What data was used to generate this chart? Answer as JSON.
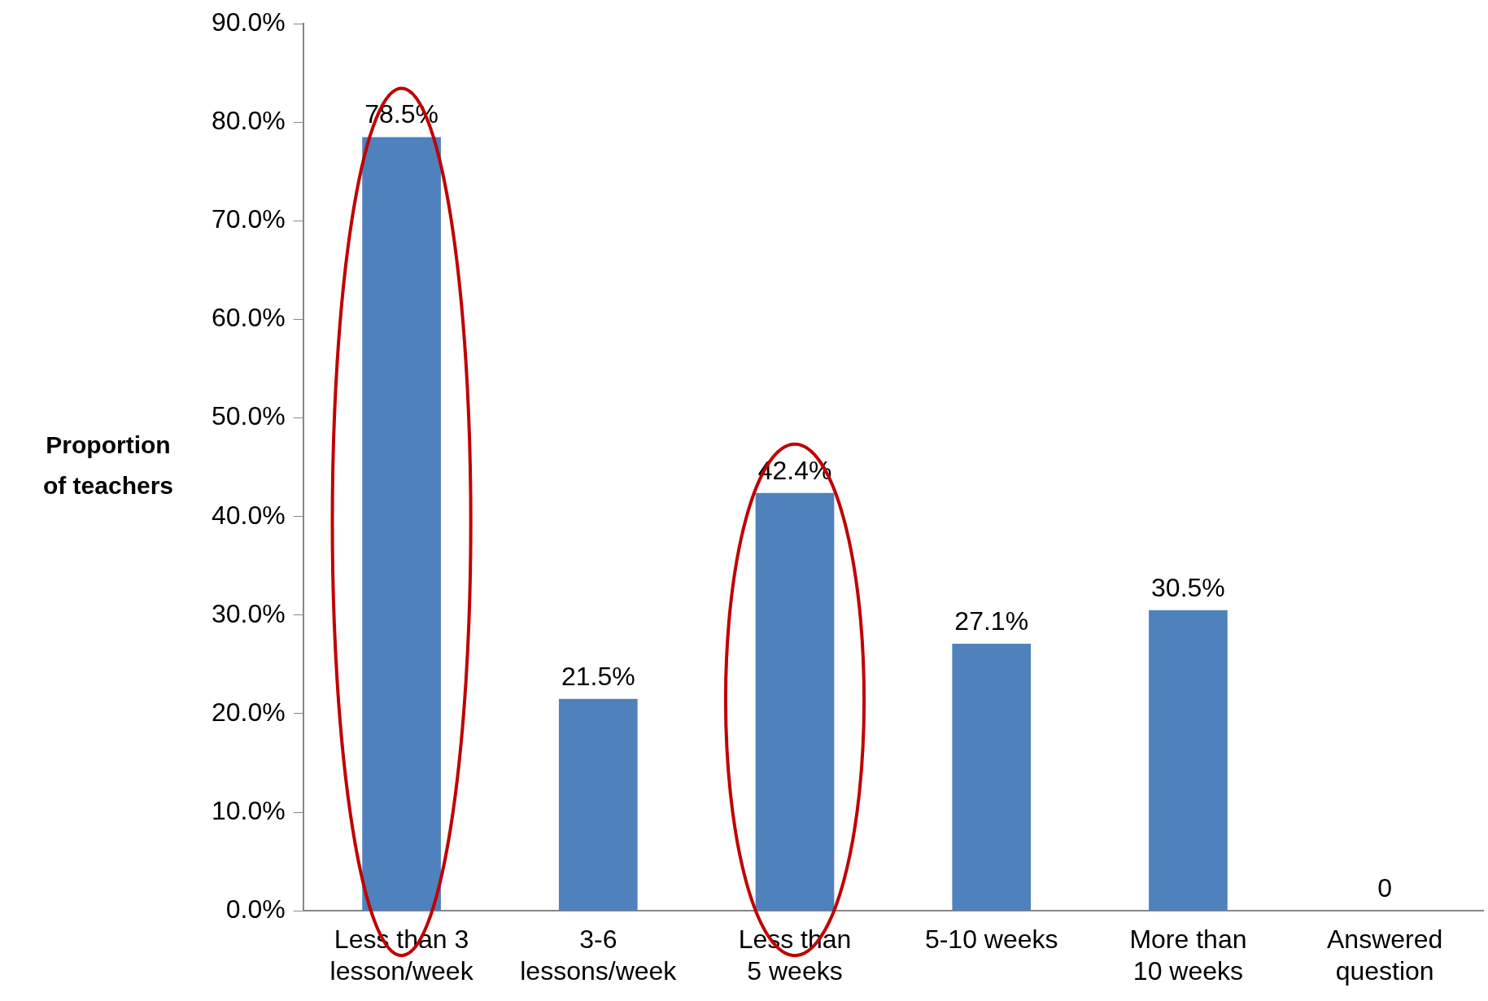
{
  "chart_data": {
    "type": "bar",
    "ylabel": "Proportion of teachers",
    "categories": [
      "Less than 3 lesson/week",
      "3-6 lessons/week",
      "Less than 5 weeks",
      "5-10 weeks",
      "More than 10 weeks",
      "Answered question"
    ],
    "values": [
      78.5,
      21.5,
      42.4,
      27.1,
      30.5,
      0
    ],
    "value_labels": [
      "78.5%",
      "21.5%",
      "42.4%",
      "27.1%",
      "30.5%",
      "0"
    ],
    "color": "#4f81bd",
    "ylim": [
      0,
      90
    ],
    "yticks": [
      {
        "value": 0,
        "label": "0.0%"
      },
      {
        "value": 10,
        "label": "10.0%"
      },
      {
        "value": 20,
        "label": "20.0%"
      },
      {
        "value": 30,
        "label": "30.0%"
      },
      {
        "value": 40,
        "label": "40.0%"
      },
      {
        "value": 50,
        "label": "50.0%"
      },
      {
        "value": 60,
        "label": "60.0%"
      },
      {
        "value": 70,
        "label": "70.0%"
      },
      {
        "value": 80,
        "label": "80.0%"
      },
      {
        "value": 90,
        "label": "90.0%"
      }
    ],
    "grid": false,
    "legend": false
  }
}
